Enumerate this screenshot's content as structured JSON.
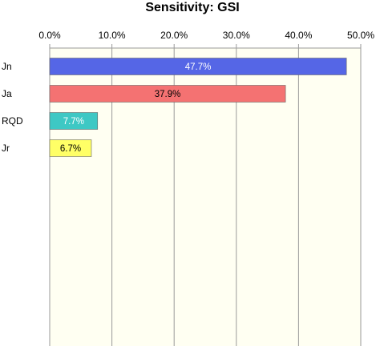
{
  "chart_data": {
    "type": "bar",
    "orientation": "horizontal",
    "title": "Sensitivity: GSI",
    "xlabel": "",
    "ylabel": "",
    "xlim": [
      0,
      50
    ],
    "x_ticks": [
      "0.0%",
      "10.0%",
      "20.0%",
      "30.0%",
      "40.0%",
      "50.0%"
    ],
    "x_axis_position": "top",
    "grid": true,
    "plot_background": "#fffff2",
    "categories": [
      "Jn",
      "Ja",
      "RQD",
      "Jr"
    ],
    "values": [
      47.7,
      37.9,
      7.7,
      6.7
    ],
    "value_labels": [
      "47.7%",
      "37.9%",
      "7.7%",
      "6.7%"
    ],
    "colors": [
      "#5566e6",
      "#f47272",
      "#3ec8c4",
      "#ffff66"
    ],
    "label_colors": [
      "#ffffff",
      "#000000",
      "#ffffff",
      "#000000"
    ]
  }
}
